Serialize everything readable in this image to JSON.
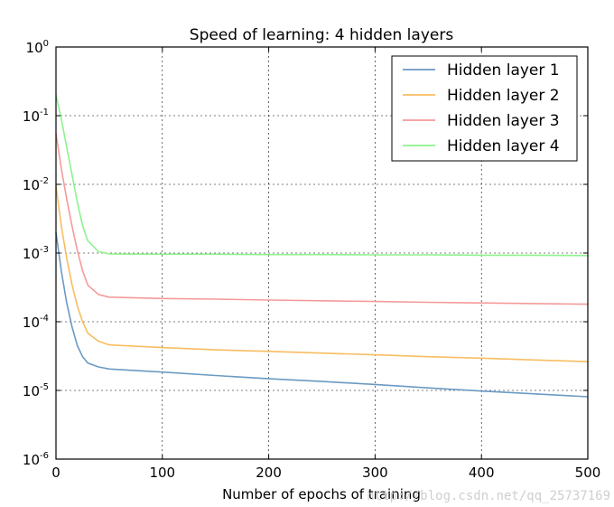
{
  "chart_data": {
    "type": "line",
    "title": "Speed of learning: 4 hidden layers",
    "xlabel": "Number of epochs of training",
    "ylabel": "",
    "xlim": [
      0,
      500
    ],
    "ylim": [
      1e-06,
      1
    ],
    "yscale": "log",
    "grid": true,
    "legend_position": "top-right",
    "x_ticks": [
      0,
      100,
      200,
      300,
      400,
      500
    ],
    "x_tick_labels": [
      "0",
      "100",
      "200",
      "300",
      "400",
      "500"
    ],
    "y_ticks": [
      1e-06,
      1e-05,
      0.0001,
      0.001,
      0.01,
      0.1,
      1
    ],
    "y_tick_labels": [
      {
        "base": "10",
        "exp": "-6"
      },
      {
        "base": "10",
        "exp": "-5"
      },
      {
        "base": "10",
        "exp": "-4"
      },
      {
        "base": "10",
        "exp": "-3"
      },
      {
        "base": "10",
        "exp": "-2"
      },
      {
        "base": "10",
        "exp": "-1"
      },
      {
        "base": "10",
        "exp": "0"
      }
    ],
    "series": [
      {
        "name": "Hidden layer 1",
        "color": "#6b9ac4",
        "points": [
          [
            0,
            0.002
          ],
          [
            5,
            0.00055
          ],
          [
            10,
            0.00019
          ],
          [
            15,
            8.5e-05
          ],
          [
            20,
            4.5e-05
          ],
          [
            25,
            3.1e-05
          ],
          [
            30,
            2.5e-05
          ],
          [
            40,
            2.2e-05
          ],
          [
            50,
            2.05e-05
          ],
          [
            100,
            1.85e-05
          ],
          [
            150,
            1.65e-05
          ],
          [
            200,
            1.48e-05
          ],
          [
            250,
            1.35e-05
          ],
          [
            300,
            1.22e-05
          ],
          [
            350,
            1.09e-05
          ],
          [
            400,
            9.8e-06
          ],
          [
            450,
            8.9e-06
          ],
          [
            500,
            8.1e-06
          ]
        ]
      },
      {
        "name": "Hidden layer 2",
        "color": "#f8bd61",
        "points": [
          [
            0,
            0.0095
          ],
          [
            5,
            0.0025
          ],
          [
            10,
            0.00085
          ],
          [
            15,
            0.00035
          ],
          [
            20,
            0.00017
          ],
          [
            25,
            0.0001
          ],
          [
            30,
            6.8e-05
          ],
          [
            40,
            5.2e-05
          ],
          [
            50,
            4.6e-05
          ],
          [
            100,
            4.2e-05
          ],
          [
            150,
            3.9e-05
          ],
          [
            200,
            3.7e-05
          ],
          [
            250,
            3.5e-05
          ],
          [
            300,
            3.3e-05
          ],
          [
            350,
            3.1e-05
          ],
          [
            400,
            2.95e-05
          ],
          [
            450,
            2.78e-05
          ],
          [
            500,
            2.62e-05
          ]
        ]
      },
      {
        "name": "Hidden layer 3",
        "color": "#f59a9a",
        "points": [
          [
            0,
            0.055
          ],
          [
            5,
            0.017
          ],
          [
            10,
            0.0062
          ],
          [
            15,
            0.0025
          ],
          [
            20,
            0.0011
          ],
          [
            25,
            0.00055
          ],
          [
            30,
            0.00034
          ],
          [
            40,
            0.00025
          ],
          [
            50,
            0.000228
          ],
          [
            100,
            0.000218
          ],
          [
            150,
            0.000213
          ],
          [
            200,
            0.000207
          ],
          [
            250,
            0.000202
          ],
          [
            300,
            0.000197
          ],
          [
            350,
            0.000192
          ],
          [
            400,
            0.000188
          ],
          [
            450,
            0.000184
          ],
          [
            500,
            0.00018
          ]
        ]
      },
      {
        "name": "Hidden layer 4",
        "color": "#8ef28e",
        "points": [
          [
            0,
            0.2
          ],
          [
            5,
            0.09
          ],
          [
            10,
            0.035
          ],
          [
            15,
            0.014
          ],
          [
            20,
            0.0055
          ],
          [
            25,
            0.0025
          ],
          [
            30,
            0.0015
          ],
          [
            40,
            0.00105
          ],
          [
            50,
            0.00097
          ],
          [
            100,
            0.00096
          ],
          [
            150,
            0.00096
          ],
          [
            200,
            0.00095
          ],
          [
            250,
            0.00095
          ],
          [
            300,
            0.00094
          ],
          [
            350,
            0.00094
          ],
          [
            400,
            0.00093
          ],
          [
            450,
            0.00093
          ],
          [
            500,
            0.00092
          ]
        ]
      }
    ]
  },
  "watermark": "http://blog.csdn.net/qq_25737169"
}
